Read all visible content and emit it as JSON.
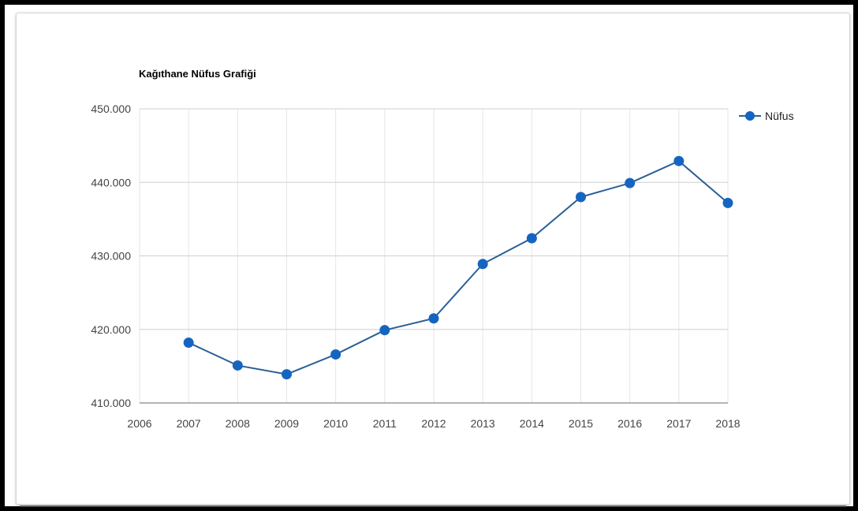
{
  "chart_data": {
    "type": "line",
    "title": "Kağıthane Nüfus Grafiği",
    "xlabel": "",
    "ylabel": "",
    "x_ticks": [
      "2006",
      "2007",
      "2008",
      "2009",
      "2010",
      "2011",
      "2012",
      "2013",
      "2014",
      "2015",
      "2016",
      "2017",
      "2018"
    ],
    "y_ticks": [
      "410.000",
      "420.000",
      "430.000",
      "440.000",
      "450.000"
    ],
    "xlim": [
      2006,
      2018
    ],
    "ylim": [
      410000,
      450000
    ],
    "grid": true,
    "legend_position": "right",
    "series": [
      {
        "name": "Nüfus",
        "color": "#1565c0",
        "line_color": "#2a5f96",
        "x": [
          2007,
          2008,
          2009,
          2010,
          2011,
          2012,
          2013,
          2014,
          2015,
          2016,
          2017,
          2018
        ],
        "values": [
          418200,
          415100,
          413900,
          416600,
          419900,
          421500,
          428900,
          432400,
          438000,
          439900,
          442900,
          437200
        ]
      }
    ]
  }
}
